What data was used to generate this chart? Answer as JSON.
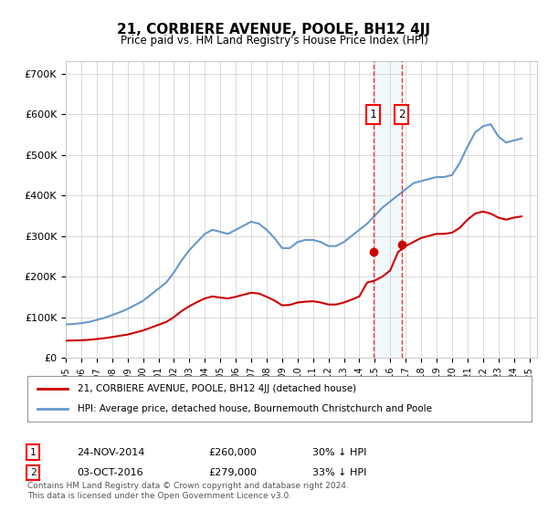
{
  "title": "21, CORBIERE AVENUE, POOLE, BH12 4JJ",
  "subtitle": "Price paid vs. HM Land Registry's House Price Index (HPI)",
  "ylabel_ticks": [
    "£0",
    "£100K",
    "£200K",
    "£300K",
    "£400K",
    "£500K",
    "£600K",
    "£700K"
  ],
  "ytick_values": [
    0,
    100000,
    200000,
    300000,
    400000,
    500000,
    600000,
    700000
  ],
  "ylim": [
    0,
    730000
  ],
  "xlim_start": 1995.0,
  "xlim_end": 2025.5,
  "hpi_color": "#6699cc",
  "sale_color": "#cc0000",
  "transaction1": {
    "date_num": 2014.9,
    "value": 260000,
    "label": "1"
  },
  "transaction2": {
    "date_num": 2016.75,
    "value": 279000,
    "label": "2"
  },
  "legend_line1": "21, CORBIERE AVENUE, POOLE, BH12 4JJ (detached house)",
  "legend_line2": "HPI: Average price, detached house, Bournemouth Christchurch and Poole",
  "table_row1": [
    "1",
    "24-NOV-2014",
    "£260,000",
    "30% ↓ HPI"
  ],
  "table_row2": [
    "2",
    "03-OCT-2016",
    "£279,000",
    "33% ↓ HPI"
  ],
  "footnote": "Contains HM Land Registry data © Crown copyright and database right 2024.\nThis data is licensed under the Open Government Licence v3.0.",
  "background_color": "#ffffff",
  "grid_color": "#cccccc",
  "hpi_data": {
    "years": [
      1995.0,
      1995.5,
      1996.0,
      1996.5,
      1997.0,
      1997.5,
      1998.0,
      1998.5,
      1999.0,
      1999.5,
      2000.0,
      2000.5,
      2001.0,
      2001.5,
      2002.0,
      2002.5,
      2003.0,
      2003.5,
      2004.0,
      2004.5,
      2005.0,
      2005.5,
      2006.0,
      2006.5,
      2007.0,
      2007.5,
      2008.0,
      2008.5,
      2009.0,
      2009.5,
      2010.0,
      2010.5,
      2011.0,
      2011.5,
      2012.0,
      2012.5,
      2013.0,
      2013.5,
      2014.0,
      2014.5,
      2015.0,
      2015.5,
      2016.0,
      2016.5,
      2017.0,
      2017.5,
      2018.0,
      2018.5,
      2019.0,
      2019.5,
      2020.0,
      2020.5,
      2021.0,
      2021.5,
      2022.0,
      2022.5,
      2023.0,
      2023.5,
      2024.0,
      2024.5
    ],
    "values": [
      82000,
      83000,
      85000,
      88000,
      93000,
      98000,
      105000,
      112000,
      120000,
      130000,
      140000,
      155000,
      170000,
      185000,
      210000,
      240000,
      265000,
      285000,
      305000,
      315000,
      310000,
      305000,
      315000,
      325000,
      335000,
      330000,
      315000,
      295000,
      270000,
      270000,
      285000,
      290000,
      290000,
      285000,
      275000,
      275000,
      285000,
      300000,
      315000,
      330000,
      350000,
      370000,
      385000,
      400000,
      415000,
      430000,
      435000,
      440000,
      445000,
      445000,
      450000,
      480000,
      520000,
      555000,
      570000,
      575000,
      545000,
      530000,
      535000,
      540000
    ]
  },
  "sale_data": {
    "years": [
      1995.0,
      1995.5,
      1996.0,
      1996.5,
      1997.0,
      1997.5,
      1998.0,
      1998.5,
      1999.0,
      1999.5,
      2000.0,
      2000.5,
      2001.0,
      2001.5,
      2002.0,
      2002.5,
      2003.0,
      2003.5,
      2004.0,
      2004.5,
      2005.0,
      2005.5,
      2006.0,
      2006.5,
      2007.0,
      2007.5,
      2008.0,
      2008.5,
      2009.0,
      2009.5,
      2010.0,
      2010.5,
      2011.0,
      2011.5,
      2012.0,
      2012.5,
      2013.0,
      2013.5,
      2014.0,
      2014.5,
      2015.0,
      2015.5,
      2016.0,
      2016.5,
      2017.0,
      2017.5,
      2018.0,
      2018.5,
      2019.0,
      2019.5,
      2020.0,
      2020.5,
      2021.0,
      2021.5,
      2022.0,
      2022.5,
      2023.0,
      2023.5,
      2024.0,
      2024.5
    ],
    "values": [
      42000,
      42500,
      43000,
      44000,
      46000,
      48000,
      51000,
      54000,
      57000,
      62000,
      67000,
      74000,
      81000,
      88000,
      100000,
      115000,
      127000,
      137000,
      146000,
      151000,
      148000,
      146000,
      150000,
      155000,
      160000,
      158000,
      150000,
      141000,
      129000,
      130000,
      136000,
      138000,
      139000,
      136000,
      131000,
      131000,
      136000,
      143000,
      151000,
      185000,
      190000,
      200000,
      215000,
      260000,
      275000,
      285000,
      295000,
      300000,
      305000,
      305000,
      308000,
      320000,
      340000,
      355000,
      360000,
      355000,
      345000,
      340000,
      345000,
      348000
    ]
  }
}
